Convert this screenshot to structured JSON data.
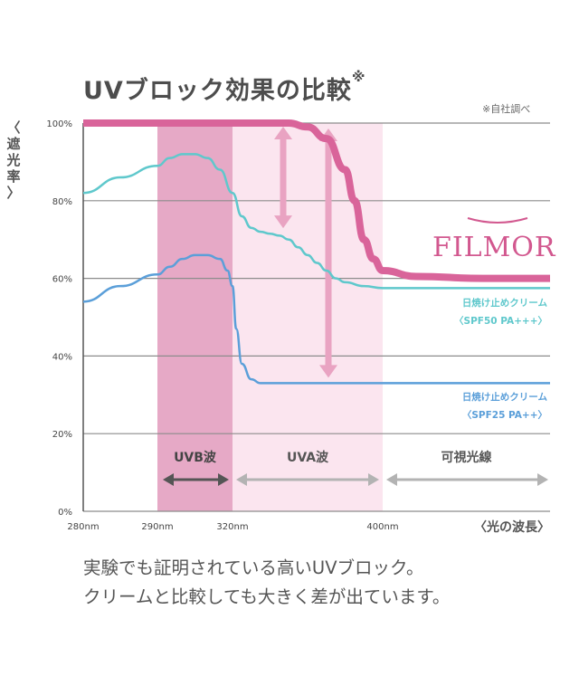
{
  "title": "UVブロック効果の比較",
  "title_mark": "※",
  "note": "※自社調べ",
  "ylabel_chars": [
    "〈",
    "遮",
    "光",
    "率",
    "〉"
  ],
  "caption_lines": [
    "実験でも証明されている高いUVブロック。",
    "クリームと比較しても大きく差が出ています。"
  ],
  "brand": "FILMOR",
  "colors": {
    "filmor": "#d9649a",
    "spf50": "#5fc8cc",
    "spf25": "#5b9fd9",
    "uvb_band": "#e6a9c6",
    "uva_band": "#fbe5ef",
    "arrow_pink": "#e9a3c2",
    "arrow_dark": "#555555",
    "arrow_grey": "#b3b3b3",
    "grid": "#8c8c8c"
  },
  "chart_data": {
    "type": "line",
    "xlabel": "〈光の波長〉",
    "x_ticks": [
      "280nm",
      "290nm",
      "320nm",
      "400nm"
    ],
    "y_ticks": [
      "0%",
      "20%",
      "40%",
      "60%",
      "80%",
      "100%"
    ],
    "ylim": [
      0,
      100
    ],
    "grid": true,
    "regions": [
      {
        "label": "UVB波",
        "from_nm": 290,
        "to_nm": 320
      },
      {
        "label": "UVA波",
        "from_nm": 320,
        "to_nm": 400
      },
      {
        "label": "可視光線",
        "from_nm": 400,
        "to_nm": null
      }
    ],
    "series": [
      {
        "name": "FILMOR",
        "points": [
          [
            280,
            100
          ],
          [
            290,
            100
          ],
          [
            300,
            100
          ],
          [
            310,
            100
          ],
          [
            320,
            100
          ],
          [
            330,
            100
          ],
          [
            340,
            100
          ],
          [
            350,
            100
          ],
          [
            360,
            99
          ],
          [
            370,
            96
          ],
          [
            380,
            88
          ],
          [
            385,
            80
          ],
          [
            390,
            70
          ],
          [
            395,
            65
          ],
          [
            400,
            62
          ],
          [
            410,
            60.5
          ],
          [
            430,
            60
          ],
          [
            450,
            60
          ]
        ]
      },
      {
        "name_lines": [
          "日焼け止めクリーム",
          "〈SPF50 PA+++〉"
        ],
        "points": [
          [
            280,
            82
          ],
          [
            285,
            86
          ],
          [
            290,
            89
          ],
          [
            295,
            91
          ],
          [
            300,
            92
          ],
          [
            305,
            92
          ],
          [
            310,
            91
          ],
          [
            315,
            88
          ],
          [
            320,
            82
          ],
          [
            325,
            76
          ],
          [
            330,
            73
          ],
          [
            335,
            72
          ],
          [
            340,
            71.5
          ],
          [
            345,
            71
          ],
          [
            350,
            70
          ],
          [
            355,
            68
          ],
          [
            360,
            66
          ],
          [
            365,
            64
          ],
          [
            370,
            62
          ],
          [
            375,
            60
          ],
          [
            380,
            59
          ],
          [
            390,
            58
          ],
          [
            400,
            57.5
          ],
          [
            420,
            57.5
          ],
          [
            450,
            57.5
          ]
        ]
      },
      {
        "name_lines": [
          "日焼け止めクリーム",
          "〈SPF25 PA++〉"
        ],
        "points": [
          [
            280,
            54
          ],
          [
            285,
            58
          ],
          [
            290,
            61
          ],
          [
            295,
            63
          ],
          [
            300,
            65
          ],
          [
            305,
            66
          ],
          [
            310,
            66
          ],
          [
            315,
            65
          ],
          [
            318,
            62
          ],
          [
            320,
            58
          ],
          [
            322,
            47
          ],
          [
            325,
            38
          ],
          [
            330,
            34
          ],
          [
            335,
            33
          ],
          [
            340,
            33
          ],
          [
            360,
            33
          ],
          [
            400,
            33
          ],
          [
            450,
            33
          ]
        ]
      }
    ]
  }
}
